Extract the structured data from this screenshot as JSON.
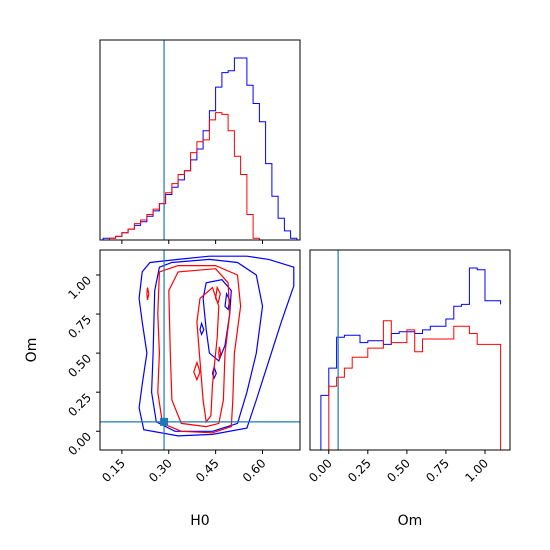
{
  "chart_data": {
    "type": "corner",
    "colors": {
      "series_a": "#0000ff",
      "series_b": "#ff0000",
      "truth": "#1f77b4"
    },
    "parameters": [
      {
        "name": "H0",
        "label": "H0",
        "range": [
          0.08,
          0.72
        ],
        "ticks": [
          0.15,
          0.3,
          0.45,
          0.6
        ],
        "tick_labels": [
          "0.15",
          "0.30",
          "0.45",
          "0.60"
        ],
        "truth": 0.285
      },
      {
        "name": "Om",
        "label": "Om",
        "range": [
          -0.12,
          1.16
        ],
        "ticks": [
          0.0,
          0.25,
          0.5,
          0.75,
          1.0
        ],
        "tick_labels": [
          "0.00",
          "0.25",
          "0.50",
          "0.75",
          "1.00"
        ],
        "truth": 0.06
      }
    ],
    "histograms": {
      "H0": {
        "bin_edges": [
          0.09,
          0.11,
          0.13,
          0.15,
          0.17,
          0.19,
          0.21,
          0.23,
          0.25,
          0.27,
          0.29,
          0.31,
          0.33,
          0.35,
          0.37,
          0.39,
          0.41,
          0.43,
          0.45,
          0.47,
          0.49,
          0.51,
          0.53,
          0.55,
          0.57,
          0.59,
          0.61,
          0.63,
          0.65,
          0.67,
          0.69,
          0.71
        ],
        "series_a": [
          0.01,
          0.01,
          0.02,
          0.04,
          0.06,
          0.08,
          0.1,
          0.13,
          0.16,
          0.2,
          0.25,
          0.29,
          0.33,
          0.38,
          0.44,
          0.5,
          0.6,
          0.71,
          0.84,
          0.92,
          0.93,
          1.0,
          1.0,
          0.85,
          0.75,
          0.65,
          0.42,
          0.24,
          0.12,
          0.05,
          0.01
        ],
        "series_b": [
          0.0,
          0.01,
          0.02,
          0.04,
          0.06,
          0.09,
          0.11,
          0.14,
          0.17,
          0.2,
          0.26,
          0.31,
          0.36,
          0.38,
          0.48,
          0.54,
          0.55,
          0.66,
          0.7,
          0.69,
          0.6,
          0.46,
          0.36,
          0.14,
          0.01,
          0.0,
          0.0,
          0.0,
          0.0,
          0.0,
          0.0
        ]
      },
      "Om": {
        "bin_edges": [
          -0.1,
          -0.05,
          0.0,
          0.05,
          0.1,
          0.15,
          0.2,
          0.25,
          0.3,
          0.35,
          0.4,
          0.45,
          0.5,
          0.55,
          0.6,
          0.65,
          0.7,
          0.75,
          0.8,
          0.85,
          0.9,
          0.95,
          1.0,
          1.05,
          1.1
        ],
        "series_a": [
          0.0,
          0.3,
          0.45,
          0.62,
          0.63,
          0.63,
          0.59,
          0.6,
          0.6,
          0.58,
          0.64,
          0.65,
          0.65,
          0.64,
          0.66,
          0.68,
          0.68,
          0.72,
          0.79,
          0.8,
          1.0,
          0.99,
          0.82,
          0.82,
          0.8
        ],
        "series_b": [
          0.0,
          0.0,
          0.35,
          0.4,
          0.45,
          0.51,
          0.51,
          0.56,
          0.56,
          0.71,
          0.59,
          0.59,
          0.66,
          0.54,
          0.61,
          0.61,
          0.61,
          0.61,
          0.68,
          0.68,
          0.64,
          0.58,
          0.58,
          0.58,
          0.0
        ]
      }
    },
    "contours": {
      "series_a": [
        [
          [
            0.215,
            1.02
          ],
          [
            0.24,
            1.08
          ],
          [
            0.33,
            1.1
          ],
          [
            0.43,
            1.12
          ],
          [
            0.55,
            1.12
          ],
          [
            0.62,
            1.1
          ],
          [
            0.7,
            1.05
          ],
          [
            0.7,
            0.93
          ],
          [
            0.66,
            0.7
          ],
          [
            0.62,
            0.45
          ],
          [
            0.58,
            0.2
          ],
          [
            0.55,
            0.02
          ],
          [
            0.44,
            -0.02
          ],
          [
            0.33,
            -0.03
          ],
          [
            0.22,
            0.01
          ],
          [
            0.205,
            0.15
          ],
          [
            0.215,
            0.3
          ],
          [
            0.23,
            0.5
          ],
          [
            0.215,
            0.7
          ],
          [
            0.205,
            0.85
          ],
          [
            0.215,
            1.02
          ]
        ],
        [
          [
            0.255,
            0.9
          ],
          [
            0.27,
            1.05
          ],
          [
            0.31,
            1.08
          ],
          [
            0.43,
            1.1
          ],
          [
            0.52,
            1.08
          ],
          [
            0.58,
            1.0
          ],
          [
            0.6,
            0.8
          ],
          [
            0.58,
            0.5
          ],
          [
            0.55,
            0.25
          ],
          [
            0.52,
            0.05
          ],
          [
            0.44,
            0.0
          ],
          [
            0.32,
            0.0
          ],
          [
            0.26,
            0.06
          ],
          [
            0.245,
            0.25
          ],
          [
            0.25,
            0.5
          ],
          [
            0.255,
            0.9
          ]
        ],
        [
          [
            0.41,
            0.85
          ],
          [
            0.42,
            0.95
          ],
          [
            0.47,
            0.97
          ],
          [
            0.5,
            0.9
          ],
          [
            0.495,
            0.75
          ],
          [
            0.48,
            0.55
          ],
          [
            0.46,
            0.45
          ],
          [
            0.43,
            0.5
          ],
          [
            0.42,
            0.65
          ],
          [
            0.41,
            0.85
          ]
        ],
        [
          [
            0.48,
            0.8
          ],
          [
            0.485,
            0.88
          ],
          [
            0.495,
            0.84
          ],
          [
            0.49,
            0.78
          ],
          [
            0.48,
            0.8
          ]
        ],
        [
          [
            0.44,
            0.37
          ],
          [
            0.445,
            0.41
          ],
          [
            0.452,
            0.37
          ],
          [
            0.445,
            0.34
          ],
          [
            0.44,
            0.37
          ]
        ],
        [
          [
            0.4,
            0.65
          ],
          [
            0.405,
            0.69
          ],
          [
            0.412,
            0.65
          ],
          [
            0.405,
            0.62
          ],
          [
            0.4,
            0.65
          ]
        ]
      ],
      "series_b": [
        [
          [
            0.27,
            1.02
          ],
          [
            0.33,
            1.06
          ],
          [
            0.45,
            1.06
          ],
          [
            0.52,
            1.0
          ],
          [
            0.53,
            0.8
          ],
          [
            0.51,
            0.5
          ],
          [
            0.505,
            0.2
          ],
          [
            0.5,
            0.03
          ],
          [
            0.44,
            -0.01
          ],
          [
            0.34,
            0.0
          ],
          [
            0.28,
            0.05
          ],
          [
            0.265,
            0.25
          ],
          [
            0.27,
            0.5
          ],
          [
            0.265,
            0.75
          ],
          [
            0.27,
            1.02
          ]
        ],
        [
          [
            0.3,
            0.9
          ],
          [
            0.33,
            1.02
          ],
          [
            0.45,
            1.04
          ],
          [
            0.49,
            0.95
          ],
          [
            0.495,
            0.75
          ],
          [
            0.48,
            0.5
          ],
          [
            0.475,
            0.2
          ],
          [
            0.46,
            0.05
          ],
          [
            0.42,
            0.03
          ],
          [
            0.34,
            0.05
          ],
          [
            0.31,
            0.2
          ],
          [
            0.305,
            0.5
          ],
          [
            0.3,
            0.9
          ]
        ],
        [
          [
            0.39,
            0.7
          ],
          [
            0.4,
            0.85
          ],
          [
            0.44,
            0.92
          ],
          [
            0.46,
            0.8
          ],
          [
            0.455,
            0.6
          ],
          [
            0.44,
            0.3
          ],
          [
            0.435,
            0.1
          ],
          [
            0.42,
            0.06
          ],
          [
            0.41,
            0.2
          ],
          [
            0.4,
            0.45
          ],
          [
            0.39,
            0.7
          ]
        ],
        [
          [
            0.45,
            0.85
          ],
          [
            0.455,
            0.92
          ],
          [
            0.465,
            0.88
          ],
          [
            0.458,
            0.82
          ],
          [
            0.45,
            0.85
          ]
        ],
        [
          [
            0.38,
            0.38
          ],
          [
            0.39,
            0.44
          ],
          [
            0.4,
            0.38
          ],
          [
            0.39,
            0.33
          ],
          [
            0.38,
            0.38
          ]
        ],
        [
          [
            0.23,
            0.88
          ],
          [
            0.232,
            0.92
          ],
          [
            0.236,
            0.88
          ],
          [
            0.232,
            0.84
          ],
          [
            0.23,
            0.88
          ]
        ],
        [
          [
            0.46,
            0.5
          ],
          [
            0.462,
            0.54
          ],
          [
            0.466,
            0.5
          ],
          [
            0.462,
            0.46
          ],
          [
            0.46,
            0.5
          ]
        ]
      ]
    }
  }
}
